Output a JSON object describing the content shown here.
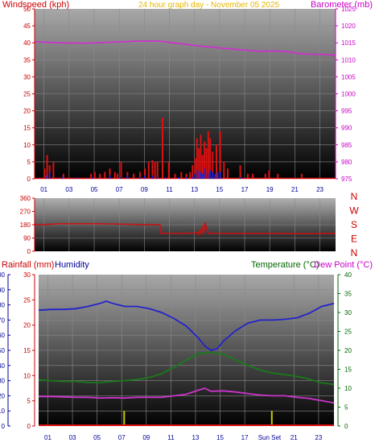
{
  "chart_data": [
    {
      "type": "line",
      "title": "24 hour graph day - November 05 2025",
      "left_axis_label": "Windspeed (kph)",
      "right_axis_label": "Barometer (mb)",
      "ylim_left": [
        0,
        50
      ],
      "ylim_right": [
        975,
        1025
      ],
      "left_ticks": [
        "0",
        "5",
        "10",
        "15",
        "20",
        "25",
        "30",
        "35",
        "40",
        "45",
        "50"
      ],
      "right_ticks": [
        "975",
        "980",
        "985",
        "990",
        "995",
        "1000",
        "1005",
        "1010",
        "1015",
        "1020",
        "1025"
      ],
      "x_ticks": [
        "01",
        "03",
        "05",
        "07",
        "09",
        "11",
        "13",
        "15",
        "17",
        "19",
        "21",
        "23"
      ],
      "grid": true,
      "series": [
        {
          "color": "#cc33cc",
          "axis": "right",
          "x": [
            0,
            2,
            4,
            6,
            7,
            8,
            9,
            10,
            11,
            12,
            13,
            14,
            15,
            16,
            17,
            18,
            19,
            20,
            21,
            22,
            23,
            24
          ],
          "y": [
            1015.3,
            1015.0,
            1014.9,
            1015.2,
            1015.3,
            1015.5,
            1015.5,
            1015.5,
            1015.0,
            1014.6,
            1014.1,
            1013.8,
            1013.4,
            1013.1,
            1012.8,
            1012.5,
            1012.6,
            1012.5,
            1011.9,
            1011.6,
            1011.6,
            1011.3
          ]
        }
      ],
      "bars": {
        "color": "#dd1111",
        "axis": "left",
        "x": [
          0.8,
          1.0,
          1.2,
          1.5,
          2.3,
          4.5,
          4.8,
          5.2,
          5.6,
          6.0,
          6.4,
          6.6,
          6.9,
          7.4,
          7.9,
          8.4,
          8.8,
          9.1,
          9.4,
          9.6,
          9.8,
          10.2,
          10.7,
          11.2,
          11.7,
          12.1,
          12.4,
          12.6,
          12.8,
          12.95,
          13.1,
          13.25,
          13.4,
          13.55,
          13.7,
          13.85,
          14.0,
          14.2,
          14.5,
          14.8,
          15.1,
          15.4,
          16.4,
          17.0,
          17.4,
          18.4,
          18.7,
          19.4,
          21.3
        ],
        "y": [
          3,
          7,
          4,
          5,
          1.5,
          1.5,
          2,
          1.5,
          2,
          3,
          2,
          1.5,
          5,
          2,
          1.5,
          2,
          3,
          5,
          5.5,
          5,
          5,
          18,
          5,
          1.5,
          2,
          1.5,
          2,
          4,
          6,
          12,
          9,
          13,
          7,
          11,
          9,
          14,
          12,
          8,
          10,
          14,
          5,
          3,
          4,
          1.5,
          1.5,
          1.5,
          2.5,
          1.5,
          1.5
        ]
      },
      "bars_low": {
        "color": "#2222cc",
        "axis": "left",
        "x": [
          0.9,
          1.2,
          2.2,
          3.4,
          4.6,
          6.0,
          6.9,
          7.4,
          8.4,
          8.8,
          9.4,
          9.8,
          10.4,
          11.5,
          12.1,
          12.6,
          12.8,
          13.0,
          13.2,
          13.4,
          13.6,
          13.8,
          14.0,
          14.2,
          14.4,
          14.6,
          14.8,
          16.4
        ],
        "y": [
          1,
          2,
          0.5,
          0.5,
          0.5,
          1,
          0.5,
          1,
          0.5,
          1,
          1,
          0.5,
          0.5,
          0.5,
          0.5,
          0.5,
          1.5,
          2.5,
          2,
          1.5,
          3,
          1.5,
          2.5,
          2,
          1.5,
          2,
          2,
          0.5
        ]
      }
    },
    {
      "type": "line",
      "title": "",
      "ylim": [
        0,
        360
      ],
      "y_ticks": [
        "0",
        "90",
        "180",
        "270",
        "360"
      ],
      "x_ticks": [],
      "compass_labels": [
        "N",
        "W",
        "S",
        "E",
        "N"
      ],
      "series": [
        {
          "color": "#cc1111",
          "x": [
            0,
            1,
            2,
            5,
            8,
            10,
            10.05,
            12,
            12.95,
            13.05,
            13.15,
            13.25,
            13.35,
            13.45,
            13.6,
            13.75,
            13.9,
            14.0,
            15,
            18,
            21,
            24
          ],
          "y": [
            180,
            182,
            186,
            187,
            182,
            180,
            122,
            121,
            125,
            112,
            142,
            118,
            175,
            112,
            195,
            140,
            120,
            121,
            121,
            121,
            120,
            121
          ]
        }
      ]
    },
    {
      "type": "line",
      "title": "",
      "left_axis_labels": [
        "Rainfall (mm)",
        "Humidity"
      ],
      "right_axis_labels": [
        "Temperature (°C)",
        "Dew Point (°C)"
      ],
      "ylim_humidity": [
        0,
        100
      ],
      "ylim_rain": [
        0,
        30
      ],
      "ylim_temp": [
        0,
        40
      ],
      "humidity_ticks": [
        "0",
        "10",
        "20",
        "30",
        "40",
        "50",
        "60",
        "70",
        "80",
        "90",
        "100"
      ],
      "rain_ticks": [
        "0",
        "5",
        "10",
        "15",
        "20",
        "25",
        "30"
      ],
      "temp_ticks": [
        "0",
        "5",
        "10",
        "15",
        "20",
        "25",
        "30",
        "35",
        "40"
      ],
      "x_ticks": [
        "01",
        "03",
        "05",
        "07",
        "09",
        "11",
        "13",
        "15",
        "17",
        "Sun",
        "Set",
        "21",
        "23"
      ],
      "series": [
        {
          "name": "Humidity",
          "color": "#2222cc",
          "axis": "humidity",
          "x": [
            0,
            1,
            2,
            3,
            4,
            5,
            5.5,
            6,
            7,
            8,
            9,
            10,
            11,
            12,
            13,
            13.5,
            14,
            14.5,
            15,
            16,
            17,
            18,
            19,
            20,
            21,
            22,
            23,
            24
          ],
          "y": [
            76.5,
            77,
            77,
            77.5,
            79,
            81,
            82.5,
            81,
            79,
            79,
            77.5,
            75,
            71,
            66,
            58,
            53,
            50,
            51,
            56,
            63,
            68,
            70,
            70,
            70.5,
            71.5,
            74.5,
            79,
            81
          ]
        },
        {
          "name": "Temperature",
          "color": "#1a7a1a",
          "axis": "temp",
          "x": [
            0,
            1,
            2,
            3,
            4,
            5,
            6,
            7,
            8,
            9,
            10,
            11,
            12,
            13,
            14,
            15,
            16,
            17,
            18,
            19,
            20,
            21,
            22,
            23,
            24
          ],
          "y": [
            12.2,
            12,
            11.8,
            11.8,
            11.5,
            11.5,
            11.8,
            12,
            12.3,
            12.8,
            13.8,
            15.5,
            17.4,
            19.2,
            19.5,
            19,
            17.5,
            16,
            14.8,
            14,
            13.6,
            13.1,
            12.4,
            11.4,
            11
          ]
        },
        {
          "name": "Dew Point",
          "color": "#cc33cc",
          "axis": "temp",
          "x": [
            0,
            1,
            2,
            3,
            4,
            5,
            6,
            7,
            8,
            9,
            10,
            11,
            12,
            13,
            13.5,
            14,
            15,
            16,
            17,
            18,
            19,
            20,
            21,
            22,
            23,
            24
          ],
          "y": [
            7.8,
            7.8,
            7.7,
            7.6,
            7.6,
            7.4,
            7.5,
            7.4,
            7.6,
            7.6,
            7.6,
            8,
            8.4,
            9.5,
            10,
            9.2,
            9.3,
            9,
            8.6,
            8.2,
            8,
            8,
            7.6,
            7.3,
            6.7,
            6.1
          ]
        },
        {
          "name": "Rainfall",
          "color": "#dd1111",
          "axis": "rain",
          "x": [
            0,
            24
          ],
          "y": [
            0,
            0
          ]
        }
      ],
      "markers": {
        "color": "#c8c800",
        "x": [
          6.95,
          18.95
        ],
        "height": 3
      }
    }
  ],
  "colors": {
    "background": "#ffffff",
    "plot_top": "#a8a8a8",
    "plot_bottom": "#000000",
    "grid": "#8a8a8a",
    "red_text": "#cc0000",
    "orange_text": "#e6b800",
    "magenta_text": "#cc00cc",
    "blue_text": "#000099",
    "green_text": "#006600"
  }
}
